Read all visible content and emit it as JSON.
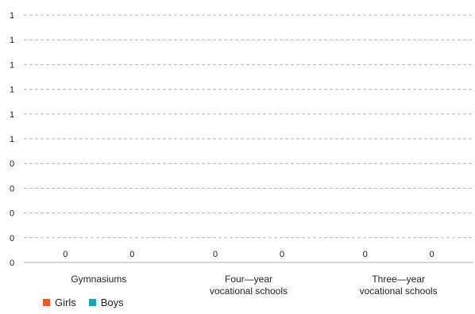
{
  "chart_data": {
    "type": "bar",
    "categories": [
      [
        "Gymnasiums"
      ],
      [
        "Four—year",
        "vocational schools"
      ],
      [
        "Three—year",
        "vocational schools"
      ]
    ],
    "series": [
      {
        "name": "Girls",
        "values": [
          0,
          0,
          0
        ],
        "color": "#ee5a24"
      },
      {
        "name": "Boys",
        "values": [
          0,
          0,
          0
        ],
        "color": "#17a2b8"
      }
    ],
    "y_tick_labels": [
      "0",
      "0",
      "0",
      "0",
      "0",
      "1",
      "1",
      "1",
      "1",
      "1",
      "1"
    ],
    "data_label_text": "0",
    "grid": true,
    "legend_position": "bottom-left"
  }
}
